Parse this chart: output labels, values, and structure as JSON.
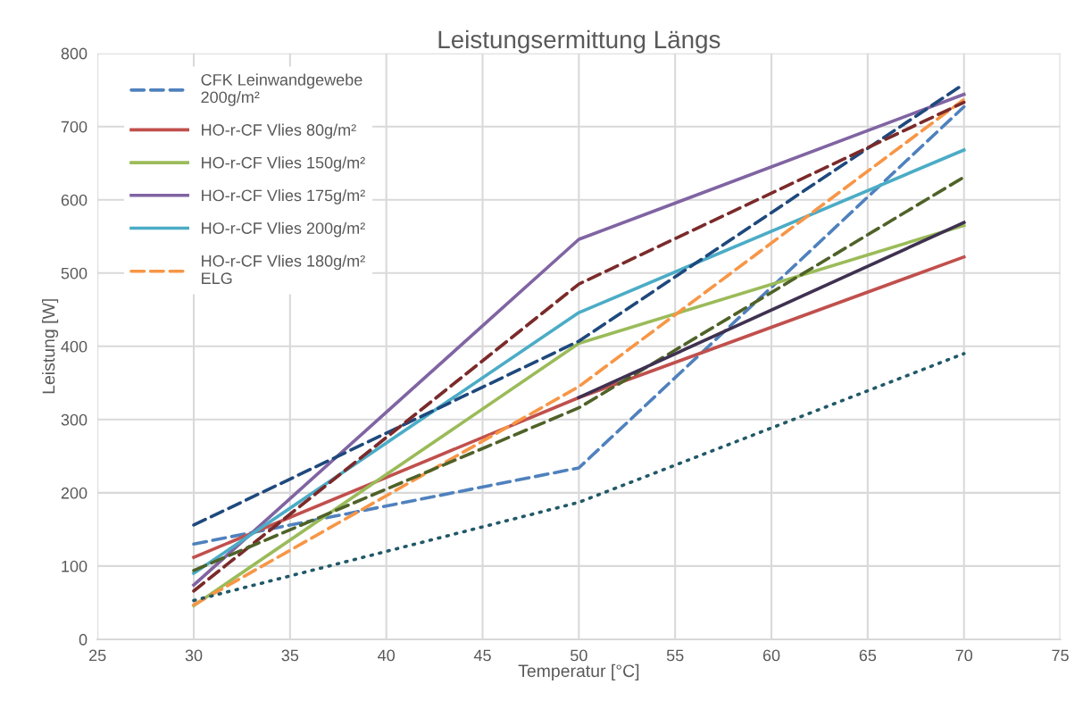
{
  "chart_data": {
    "type": "line",
    "title": "Leistungsermittung Längs",
    "xlabel": "Temperatur [°C]",
    "ylabel": "Leistung [W]",
    "x": [
      30,
      50,
      70
    ],
    "series": [
      {
        "name": "CFK Leinwandgewebe\n200g/m²",
        "color": "#4f81bd",
        "line_style": "dashed",
        "values": [
          130,
          234,
          727
        ]
      },
      {
        "name": "HO-r-CF Vlies 80g/m²",
        "color": "#c0504d",
        "line_style": "solid",
        "values": [
          112,
          330,
          522
        ]
      },
      {
        "name": "HO-r-CF Vlies 150g/m²",
        "color": "#9bbb59",
        "line_style": "solid",
        "values": [
          46,
          404,
          565
        ]
      },
      {
        "name": "HO-r-CF Vlies 175g/m²",
        "color": "#8064a2",
        "line_style": "solid",
        "values": [
          74,
          546,
          744
        ]
      },
      {
        "name": "HO-r-CF Vlies 200g/m²",
        "color": "#4bacc6",
        "line_style": "solid",
        "values": [
          90,
          446,
          668
        ]
      },
      {
        "name": "HO-r-CF Vlies 180g/m²\nELG",
        "color": "#f79646",
        "line_style": "dashed",
        "values": [
          47,
          345,
          737
        ]
      },
      {
        "color": "#1f497d",
        "line_style": "dashed",
        "values": [
          156,
          407,
          758
        ]
      },
      {
        "color": "#7b2a2a",
        "line_style": "dashed",
        "values": [
          66,
          485,
          733
        ]
      },
      {
        "color": "#4f6228",
        "line_style": "dashed",
        "values": [
          94,
          316,
          631
        ]
      },
      {
        "color": "#3f3151",
        "line_style": "solid",
        "values": [
          null,
          330,
          569
        ]
      },
      {
        "color": "#215968",
        "line_style": "dotted",
        "values": [
          53,
          187,
          390
        ]
      }
    ],
    "xlim": [
      25,
      75
    ],
    "xticks": [
      25,
      30,
      35,
      40,
      45,
      50,
      55,
      60,
      65,
      70,
      75
    ],
    "ylim": [
      0,
      800
    ],
    "yticks": [
      0,
      100,
      200,
      300,
      400,
      500,
      600,
      700,
      800
    ],
    "grid": true,
    "legend": "top left"
  }
}
